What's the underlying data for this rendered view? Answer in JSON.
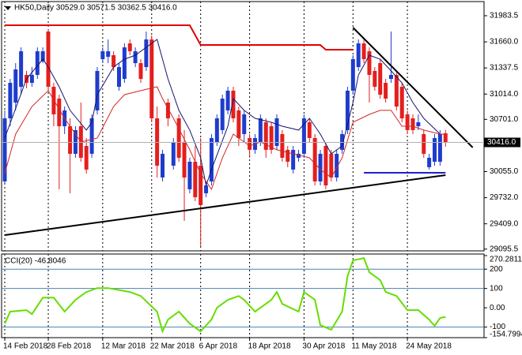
{
  "chart_data": {
    "type": "candlestick",
    "title": "HK50,Daily  30529.0 30571.5 30362.5 30416.0",
    "categories": [
      "14 Feb 2018",
      null,
      null,
      null,
      null,
      null,
      null,
      null,
      "28 Feb 2018",
      null,
      null,
      null,
      null,
      null,
      null,
      null,
      null,
      null,
      "12 Mar 2018",
      null,
      null,
      null,
      null,
      null,
      null,
      null,
      null,
      "22 Mar 2018",
      null,
      null,
      null,
      null,
      null,
      null,
      null,
      null,
      "6 Apr 2018",
      null,
      null,
      null,
      null,
      null,
      null,
      null,
      null,
      "18 Apr 2018",
      null,
      null,
      null,
      null,
      null,
      null,
      null,
      null,
      null,
      "30 Apr 2018",
      null,
      null,
      null,
      null,
      null,
      null,
      null,
      null,
      "11 May 2018",
      null,
      null,
      null,
      null,
      null,
      null,
      null,
      null,
      null,
      "24 May 2018",
      null,
      null,
      null,
      null,
      null,
      null,
      null
    ],
    "open": [
      29933,
      30714,
      30909,
      31104,
      31251,
      31153,
      31251,
      31417,
      31788,
      31104,
      30958,
      30616,
      30616,
      30275,
      30616,
      30372,
      30275,
      30812,
      31446,
      31475,
      31495,
      31104,
      31202,
      31641,
      31397,
      31397,
      31348,
      31690,
      30714,
      29982,
      30909,
      30128,
      30714,
      30421,
      29836,
      30177,
      30128,
      29787,
      29933,
      30421,
      30568,
      30812,
      31056,
      30812,
      30519,
      30470,
      30324,
      30421,
      30665,
      30616,
      30372,
      30519,
      30324,
      30080,
      30226,
      30275,
      30665,
      30470,
      29933,
      30372,
      30275,
      29982,
      30324,
      30568,
      31056,
      31348,
      31641,
      31544,
      31300,
      31397,
      31153,
      31202,
      31251,
      31104,
      30763,
      30714,
      30616,
      30519,
      30109,
      30177,
      30177,
      30529
    ],
    "high": [
      30812,
      31202,
      31397,
      31592,
      31300,
      31348,
      31592,
      31592,
      31807,
      31153,
      31007,
      30860,
      30714,
      30616,
      30909,
      30470,
      30763,
      31348,
      31592,
      31690,
      31544,
      31397,
      31641,
      31690,
      31592,
      31446,
      31788,
      31739,
      30860,
      30324,
      30958,
      30470,
      30763,
      30568,
      30226,
      30372,
      30470,
      29933,
      30519,
      30763,
      31007,
      31104,
      31104,
      30860,
      30812,
      30519,
      30519,
      30763,
      30714,
      30665,
      30763,
      30568,
      30372,
      30372,
      30324,
      30763,
      30714,
      30519,
      30324,
      30421,
      30324,
      30324,
      30568,
      31104,
      31495,
      31690,
      31690,
      31592,
      31348,
      31446,
      31202,
      31788,
      31300,
      31153,
      30812,
      30763,
      30763,
      30568,
      30275,
      30519,
      30568,
      30571.5
    ],
    "low": [
      29914,
      30616,
      30812,
      31007,
      31085,
      31104,
      31202,
      31397,
      31056,
      30616,
      29836,
      30519,
      29787,
      30226,
      30177,
      30031,
      30226,
      30763,
      31397,
      31397,
      31300,
      31056,
      31153,
      31495,
      31348,
      31153,
      31300,
      30665,
      29982,
      29933,
      30616,
      30080,
      30177,
      29445,
      29787,
      29689,
      29133,
      29738,
      29884,
      30372,
      30519,
      30763,
      30665,
      30372,
      30421,
      30226,
      30275,
      30372,
      30226,
      30275,
      30324,
      30177,
      30109,
      30031,
      30177,
      30226,
      30421,
      29884,
      29884,
      29836,
      29933,
      29933,
      30275,
      30519,
      31007,
      31300,
      31397,
      30909,
      31056,
      30958,
      30909,
      31153,
      30812,
      30665,
      30519,
      30519,
      30568,
      30226,
      30080,
      30128,
      30128,
      30362.5
    ],
    "close": [
      30714,
      31153,
      31319,
      31544,
      31153,
      31251,
      31544,
      31544,
      31104,
      30763,
      30616,
      30812,
      30275,
      30568,
      30226,
      30080,
      30714,
      31300,
      31544,
      31544,
      31348,
      31348,
      31592,
      31544,
      31544,
      31202,
      31690,
      30714,
      30128,
      30275,
      30714,
      30421,
      30226,
      29982,
      30177,
      29738,
      29640,
      29884,
      30470,
      30714,
      30958,
      31056,
      30714,
      30470,
      30763,
      30324,
      30470,
      30714,
      30324,
      30324,
      30714,
      30226,
      30177,
      30324,
      30275,
      30714,
      30470,
      29933,
      30275,
      29884,
      29982,
      30275,
      30519,
      31056,
      31446,
      31641,
      31446,
      31251,
      31104,
      31007,
      30958,
      31251,
      30860,
      30714,
      30568,
      30568,
      30665,
      30275,
      30226,
      30470,
      30519,
      30416
    ],
    "up_color": "#1e3ccc",
    "down_color": "#e41e1e",
    "ylim": [
      29074,
      32178
    ],
    "yticks": [
      {
        "value": 31983.5,
        "label": "31983.5"
      },
      {
        "value": 31660,
        "label": "31660.0"
      },
      {
        "value": 31337.5,
        "label": "31337.5"
      },
      {
        "value": 31014,
        "label": "31014.0"
      },
      {
        "value": 30701,
        "label": "30701.0"
      },
      {
        "value": 30055,
        "label": "30055.0"
      },
      {
        "value": 29732,
        "label": "29732.0"
      },
      {
        "value": 29409,
        "label": "29409.0"
      },
      {
        "value": 29095.5,
        "label": "29095.5"
      }
    ],
    "current_price": {
      "value": 30416,
      "label": "30416.0"
    },
    "lines": [
      {
        "color": "#14146e",
        "width": 1,
        "x": [
          0,
          4,
          7,
          8,
          10,
          12,
          15,
          16,
          17,
          20,
          22,
          24,
          26,
          28,
          30,
          32,
          34,
          36,
          37,
          38,
          41,
          42,
          44,
          46,
          49,
          51,
          54,
          56,
          58,
          60,
          62,
          64,
          65,
          67,
          69,
          71,
          73,
          75,
          77,
          80,
          81
        ],
        "values": [
          30470,
          31202,
          31446,
          31348,
          31104,
          30812,
          30568,
          30665,
          31007,
          31348,
          31446,
          31495,
          31592,
          31690,
          31202,
          30812,
          30568,
          30226,
          29884,
          30080,
          30616,
          30958,
          30812,
          30714,
          30665,
          30616,
          30568,
          30714,
          30519,
          30275,
          30372,
          30909,
          31251,
          31495,
          31446,
          31300,
          31153,
          30909,
          30714,
          30519,
          30519
        ]
      },
      {
        "color": "#d02828",
        "width": 1,
        "x": [
          0,
          2,
          5,
          8,
          11,
          14,
          17,
          20,
          22,
          25,
          28,
          29,
          31,
          34,
          36,
          38,
          40,
          42,
          45,
          47,
          50,
          53,
          56,
          58,
          60,
          62,
          64,
          67,
          69,
          71,
          73,
          75,
          77,
          80,
          81
        ],
        "values": [
          30031,
          30519,
          30860,
          31056,
          30714,
          30421,
          30470,
          30860,
          31007,
          31056,
          31104,
          30958,
          30714,
          30324,
          30031,
          29836,
          30226,
          30519,
          30372,
          30421,
          30324,
          30275,
          30226,
          30080,
          29982,
          30226,
          30665,
          30763,
          30812,
          30812,
          30616,
          30616,
          30568,
          30519,
          30519
        ]
      },
      {
        "color": "#e00000",
        "width": 2,
        "x": [
          0,
          34,
          36,
          58,
          59,
          64
        ],
        "values": [
          31866,
          31866,
          31622,
          31622,
          31563,
          31563
        ]
      },
      {
        "color": "#000000",
        "width": 2,
        "x": [
          0,
          81
        ],
        "values": [
          29269,
          30011
        ]
      },
      {
        "color": "#000000",
        "width": 2,
        "x": [
          64,
          86
        ],
        "values": [
          31836,
          30353
        ]
      },
      {
        "color": "#2020d0",
        "width": 2,
        "x": [
          66,
          81
        ],
        "values": [
          30040,
          30040
        ]
      }
    ],
    "indicator": {
      "type": "line",
      "title": "CCI(20) -46.8046",
      "color": "#66dd00",
      "x": [
        0,
        1,
        4,
        5,
        7,
        9,
        11,
        13,
        15,
        17,
        19,
        23,
        25,
        28,
        29,
        30,
        32,
        34,
        36,
        38,
        39,
        41,
        43,
        44,
        46,
        49,
        50,
        51,
        54,
        55,
        57,
        58,
        60,
        62,
        63,
        64,
        66,
        67,
        69,
        70,
        72,
        74,
        76,
        78,
        79,
        80,
        81
      ],
      "values": [
        -82,
        -20,
        -12,
        -33,
        53,
        53,
        -20,
        41,
        82,
        102,
        102,
        82,
        61,
        -20,
        -122,
        -61,
        -20,
        -82,
        -122,
        -61,
        0,
        41,
        61,
        41,
        -20,
        41,
        82,
        20,
        -20,
        82,
        41,
        -90,
        -114,
        -20,
        163,
        245,
        257,
        184,
        143,
        82,
        61,
        -12,
        -12,
        -61,
        -94,
        -53,
        -47
      ],
      "ylim": [
        -154.7994,
        270.2811
      ],
      "yticks": [
        {
          "value": 270.2811,
          "label": "270.2811"
        },
        200,
        100,
        {
          "value": 0,
          "label": "0.00"
        },
        -100,
        {
          "value": -154.7994,
          "label": "-154.7994"
        }
      ],
      "levels": [
        200,
        100,
        -100
      ],
      "level_color": "#4682b4"
    }
  }
}
